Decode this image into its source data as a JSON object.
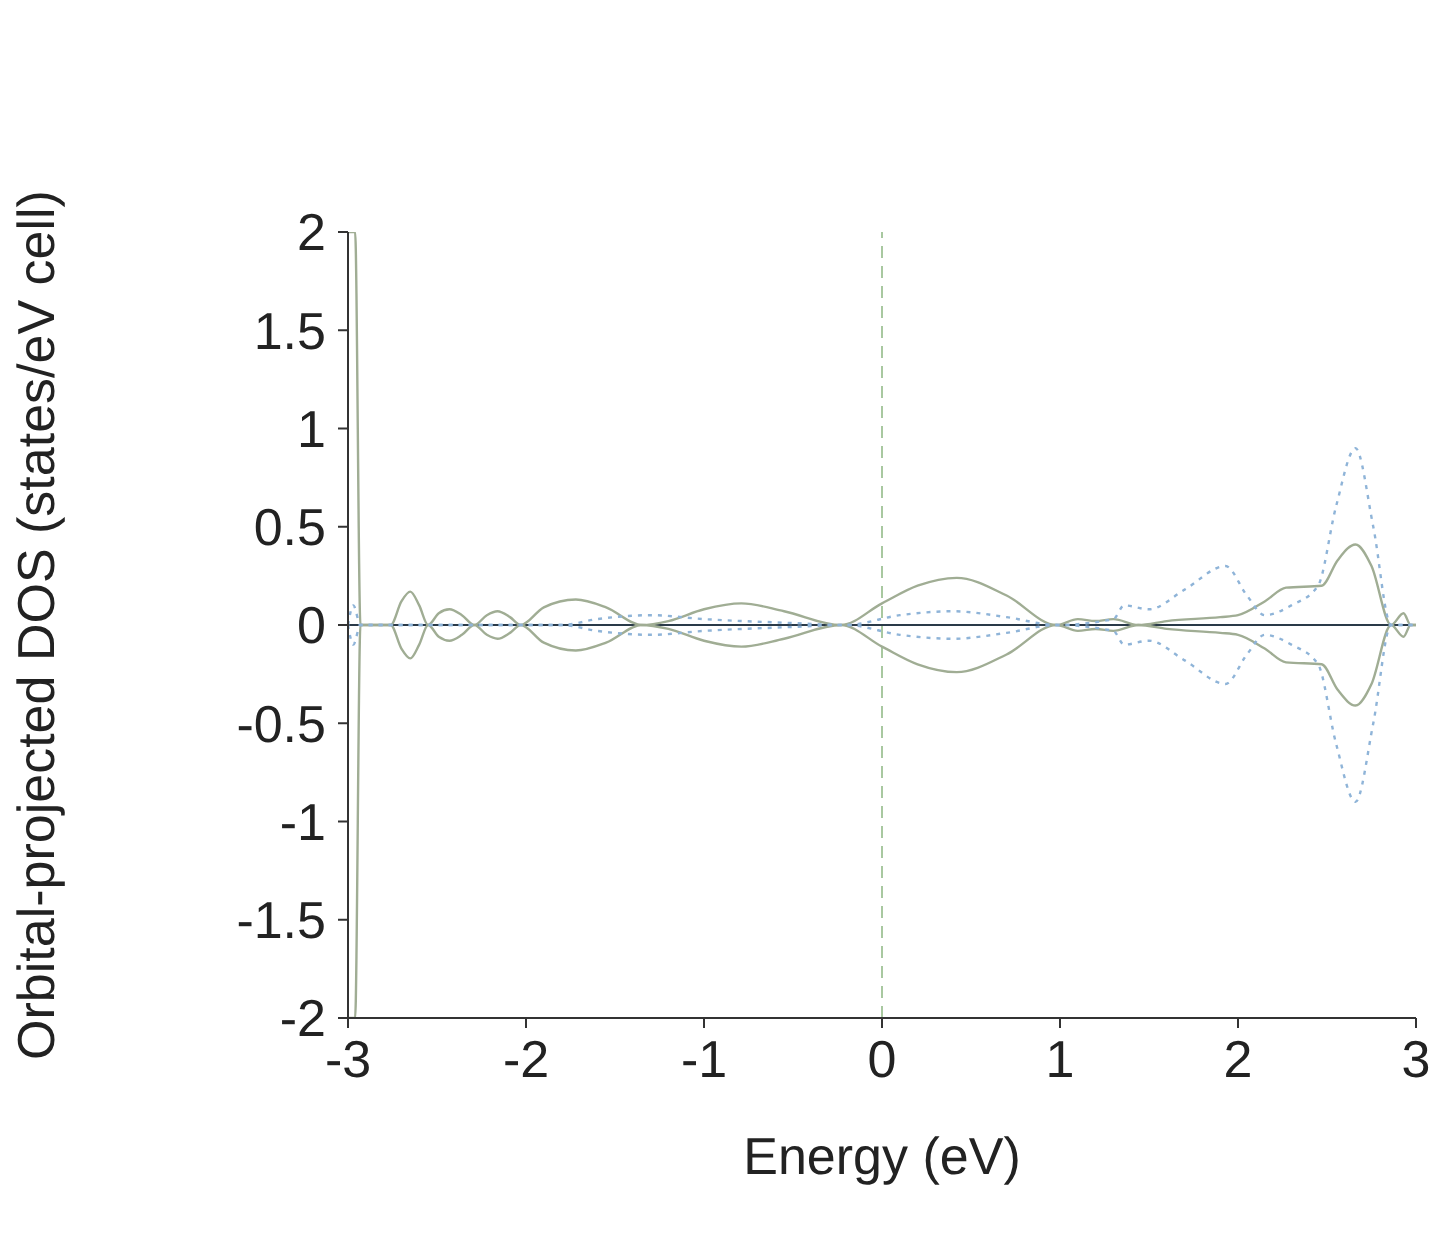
{
  "chart_data": {
    "type": "line",
    "xlabel": "Energy (eV)",
    "ylabel": "Orbital-projected DOS (states/eV cell)",
    "xlim": [
      -3,
      3
    ],
    "xticks": [
      -3,
      -2,
      -1,
      0,
      1,
      2,
      3
    ],
    "ylim": [
      -2,
      2
    ],
    "yticks": [
      -2,
      -1.5,
      -1,
      -0.5,
      0,
      0.5,
      1,
      1.5,
      2
    ],
    "grid": false,
    "legend": false,
    "marker": "none",
    "ref_lines": [
      {
        "axis": "x",
        "value": 0,
        "color": "#a8c8a0",
        "line_style": "dashed"
      },
      {
        "axis": "y",
        "value": 0,
        "color": "#2a3a48",
        "line_style": "solid"
      }
    ],
    "series": [
      {
        "color": "#a0ad94",
        "line_style": "solid",
        "x": [
          -3,
          -2.96,
          -2.93,
          -2.76,
          -2.7,
          -2.65,
          -2.6,
          -2.55,
          -2.49,
          -2.43,
          -2.36,
          -2.29,
          -2.22,
          -2.16,
          -2.09,
          -2.03,
          -1.9,
          -1.72,
          -1.55,
          -1.35,
          -1.2,
          -1.0,
          -0.79,
          -0.55,
          -0.23,
          0,
          0.2,
          0.42,
          0.7,
          0.98,
          1.1,
          1.2,
          1.3,
          1.44,
          1.6,
          1.9,
          2.0,
          2.15,
          2.27,
          2.47,
          2.56,
          2.66,
          2.75,
          2.86,
          2.93,
          2.97,
          3
        ],
        "values": [
          2,
          2,
          0,
          0,
          0.12,
          0.17,
          0.1,
          0,
          0.06,
          0.08,
          0.05,
          0,
          0.05,
          0.07,
          0.04,
          0,
          0.09,
          0.13,
          0.09,
          0,
          0.02,
          0.08,
          0.11,
          0.07,
          0,
          0.11,
          0.2,
          0.24,
          0.15,
          0,
          0.03,
          0.02,
          0.03,
          0,
          0.02,
          0.04,
          0.05,
          0.12,
          0.19,
          0.2,
          0.33,
          0.41,
          0.3,
          0,
          0.06,
          0,
          0
        ]
      },
      {
        "color": "#a0ad94",
        "line_style": "solid",
        "x": [
          -3,
          -2.96,
          -2.93,
          -2.76,
          -2.7,
          -2.65,
          -2.6,
          -2.55,
          -2.49,
          -2.43,
          -2.36,
          -2.29,
          -2.22,
          -2.16,
          -2.09,
          -2.03,
          -1.9,
          -1.72,
          -1.55,
          -1.35,
          -1.2,
          -1.0,
          -0.79,
          -0.55,
          -0.23,
          0,
          0.2,
          0.42,
          0.7,
          0.98,
          1.1,
          1.2,
          1.3,
          1.44,
          1.6,
          1.9,
          2.0,
          2.15,
          2.27,
          2.47,
          2.56,
          2.66,
          2.75,
          2.86,
          2.93,
          2.97,
          3
        ],
        "values": [
          -2,
          -2,
          0,
          0,
          -0.12,
          -0.17,
          -0.1,
          0,
          -0.06,
          -0.08,
          -0.05,
          0,
          -0.05,
          -0.07,
          -0.04,
          0,
          -0.09,
          -0.13,
          -0.09,
          0,
          -0.02,
          -0.08,
          -0.11,
          -0.07,
          0,
          -0.11,
          -0.2,
          -0.24,
          -0.15,
          0,
          -0.03,
          -0.02,
          -0.03,
          0,
          -0.02,
          -0.04,
          -0.05,
          -0.12,
          -0.19,
          -0.2,
          -0.33,
          -0.41,
          -0.3,
          0,
          -0.06,
          0,
          0
        ]
      },
      {
        "color": "#8fb4d8",
        "line_style": "dotted",
        "x": [
          -3,
          -2.97,
          -2.93,
          -1.8,
          -1.6,
          -1.3,
          -1.0,
          -0.5,
          -0.2,
          0.1,
          0.4,
          0.7,
          0.98,
          1.3,
          1.36,
          1.5,
          1.7,
          1.93,
          2.05,
          2.15,
          2.3,
          2.45,
          2.55,
          2.66,
          2.76,
          2.86,
          3
        ],
        "values": [
          0,
          0.1,
          0,
          0,
          0.03,
          0.05,
          0.03,
          0.01,
          0,
          0.05,
          0.07,
          0.04,
          0,
          0.03,
          0.1,
          0.08,
          0.18,
          0.3,
          0.15,
          0.05,
          0.1,
          0.2,
          0.6,
          0.9,
          0.5,
          0,
          0
        ]
      },
      {
        "color": "#8fb4d8",
        "line_style": "dotted",
        "x": [
          -3,
          -2.97,
          -2.93,
          -1.8,
          -1.6,
          -1.3,
          -1.0,
          -0.5,
          -0.2,
          0.1,
          0.4,
          0.7,
          0.98,
          1.3,
          1.36,
          1.5,
          1.7,
          1.93,
          2.05,
          2.15,
          2.3,
          2.45,
          2.55,
          2.66,
          2.76,
          2.86,
          3
        ],
        "values": [
          0,
          -0.1,
          0,
          0,
          -0.03,
          -0.05,
          -0.03,
          -0.01,
          0,
          -0.05,
          -0.07,
          -0.04,
          0,
          -0.03,
          -0.1,
          -0.08,
          -0.18,
          -0.3,
          -0.15,
          -0.05,
          -0.1,
          -0.2,
          -0.6,
          -0.9,
          -0.5,
          0,
          0
        ]
      }
    ]
  }
}
